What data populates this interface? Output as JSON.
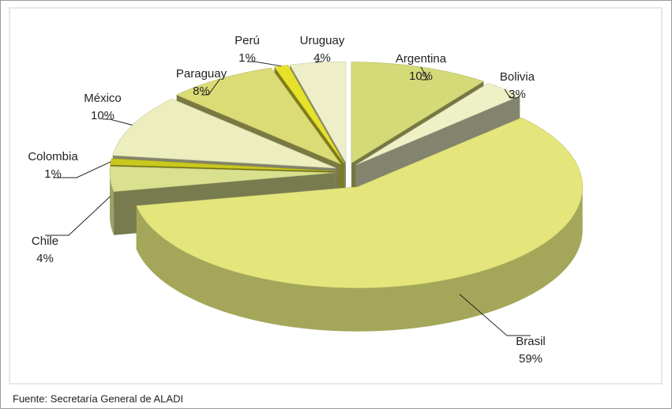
{
  "chart_data": {
    "type": "pie",
    "categories": [
      "Argentina",
      "Bolivia",
      "Brasil",
      "Chile",
      "Colombia",
      "México",
      "Paraguay",
      "Perú",
      "Uruguay"
    ],
    "values": [
      10,
      3,
      59,
      4,
      1,
      10,
      8,
      1,
      4
    ],
    "value_labels": [
      "10%",
      "3%",
      "59%",
      "4%",
      "1%",
      "10%",
      "8%",
      "1%",
      "4%"
    ],
    "colors": [
      "#d4da78",
      "#eef0c6",
      "#e4e67c",
      "#d9e08e",
      "#c9c81e",
      "#eceebe",
      "#dcdc76",
      "#e6e22c",
      "#eeeec8"
    ],
    "source": "Fuente: Secretaría General de ALADI"
  }
}
